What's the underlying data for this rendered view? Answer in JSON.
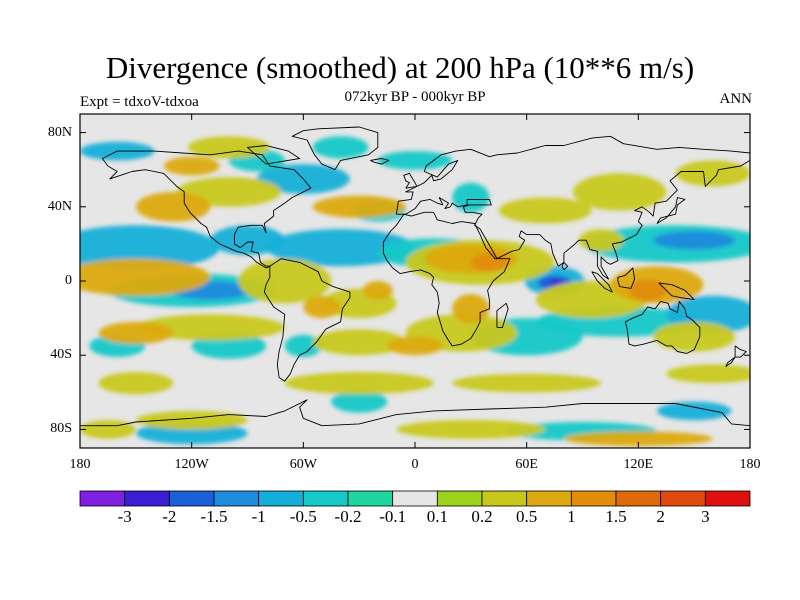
{
  "title": "Divergence (smoothed) at 200 hPa (10**6 m/s)",
  "left_label": "Expt = tdxoV-tdxoa",
  "center_label": "072kyr BP - 000kyr BP",
  "right_label": "ANN",
  "map": {
    "lon_ticks": [
      "180",
      "120W",
      "60W",
      "0",
      "60E",
      "120E",
      "180"
    ],
    "lat_ticks": [
      "80N",
      "40N",
      "0",
      "40S",
      "80S"
    ],
    "lat_range": [
      -90,
      90
    ],
    "lon_range": [
      -180,
      180
    ],
    "missing_color": "#e6e6e6"
  },
  "colorbar": {
    "labels": [
      "-3",
      "-2",
      "-1.5",
      "-1",
      "-0.5",
      "-0.2",
      "-0.1",
      "0.1",
      "0.2",
      "0.5",
      "1",
      "1.5",
      "2",
      "3"
    ],
    "colors": [
      "#7f1fe0",
      "#3a1fd6",
      "#1d5fd8",
      "#1e8bdc",
      "#14afd8",
      "#16c8c8",
      "#1fd6a0",
      "#e6e6e6",
      "#9bd21c",
      "#c8c81c",
      "#dcaa10",
      "#e28c0c",
      "#e06a0a",
      "#e04a10",
      "#e01010"
    ]
  }
}
